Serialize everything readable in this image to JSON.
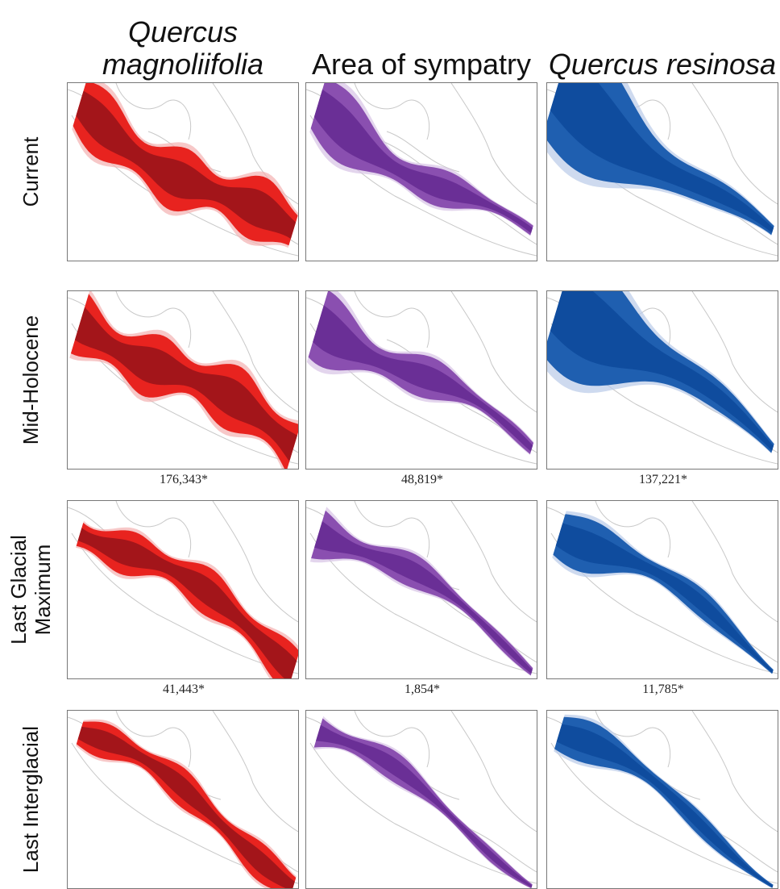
{
  "columns": [
    "Quercus magnoliifolia",
    "Area of sympatry",
    "Quercus resinosa"
  ],
  "rows": [
    {
      "label": "Current"
    },
    {
      "label": "Mid-Holocene",
      "areas": [
        "176,343*",
        "48,819*",
        "137,221*"
      ]
    },
    {
      "label": "Last Glacial Maximum",
      "areas": [
        "41,443*",
        "1,854*",
        "11,785*"
      ]
    },
    {
      "label": "Last Interglacial"
    }
  ]
}
